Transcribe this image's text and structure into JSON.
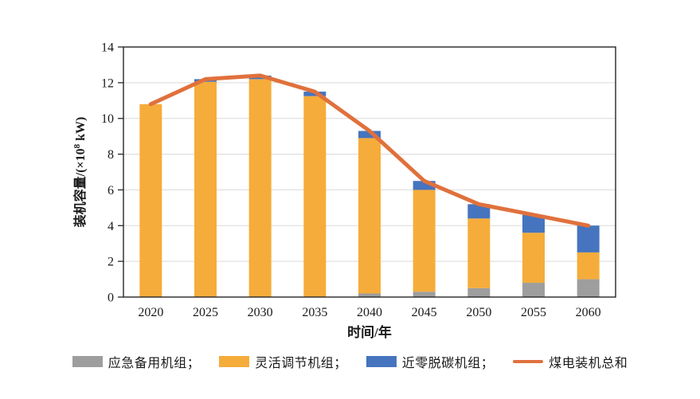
{
  "chart_data": {
    "type": "bar",
    "subtype": "stacked-bars-with-total-line",
    "categories": [
      "2020",
      "2025",
      "2030",
      "2035",
      "2040",
      "2045",
      "2050",
      "2055",
      "2060"
    ],
    "series": [
      {
        "name": "应急备用机组",
        "color": "#9E9E9E",
        "values": [
          0,
          0,
          0,
          0,
          0.2,
          0.3,
          0.5,
          0.8,
          1.0
        ]
      },
      {
        "name": "灵活调节机组",
        "color": "#F5AC3A",
        "values": [
          10.8,
          12.05,
          12.2,
          11.25,
          8.7,
          5.7,
          3.9,
          2.8,
          1.5
        ]
      },
      {
        "name": "近零脱碳机组",
        "color": "#4674BE",
        "values": [
          0,
          0.15,
          0.2,
          0.25,
          0.4,
          0.5,
          0.8,
          1.0,
          1.5
        ]
      }
    ],
    "line_series": {
      "name": "煤电装机总和",
      "color": "#E0713C",
      "values": [
        10.8,
        12.2,
        12.4,
        11.5,
        9.3,
        6.5,
        5.2,
        4.6,
        4.0
      ]
    },
    "title": "",
    "xlabel": "时间/年",
    "ylabel": "装机容量/(×10⁸ kW)",
    "ylim": [
      0,
      14
    ],
    "ytick_step": 2,
    "grid": true,
    "gridline_color": "#D9D9D9",
    "axis_color": "#262626",
    "tick_label_color": "#1a1a1a",
    "legend_position": "bottom"
  },
  "legend": {
    "items": [
      {
        "label": "应急备用机组；",
        "swatch": "rect",
        "color": "#9E9E9E"
      },
      {
        "label": "灵活调节机组；",
        "swatch": "rect",
        "color": "#F5AC3A"
      },
      {
        "label": "近零脱碳机组；",
        "swatch": "rect",
        "color": "#4674BE"
      },
      {
        "label": "煤电装机总和",
        "swatch": "line",
        "color": "#E0713C"
      }
    ]
  }
}
